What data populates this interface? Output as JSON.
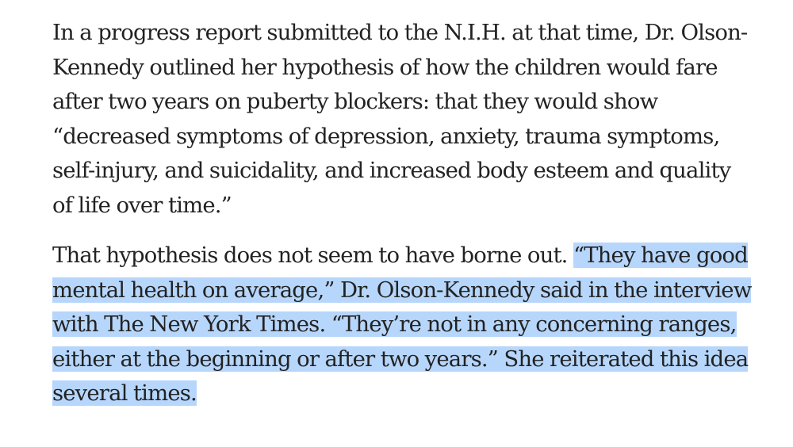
{
  "article": {
    "paragraph_1": {
      "lines": [
        "In a progress report submitted to the N.I.H. at that time, Dr. Olson-",
        "Kennedy outlined her hypothesis of how the children would fare",
        "after two years on puberty blockers: that they would show",
        "“decreased symptoms of depression, anxiety, trauma symptoms,",
        "self-injury, and suicidality, and increased body esteem and quality",
        "of life over time.”"
      ]
    },
    "paragraph_2": {
      "line_1_plain": "That hypothesis does not seem to have borne out. ",
      "line_1_selected": "“They have good",
      "selected_lines": [
        "mental health on average,” Dr. Olson-Kennedy said in the interview",
        "with The New York Times. “They’re not in any concerning ranges,",
        "either at the beginning or after two years.” She reiterated this idea",
        "several times."
      ]
    }
  },
  "selection_color": "#b7d6fb",
  "text_color": "#222222"
}
